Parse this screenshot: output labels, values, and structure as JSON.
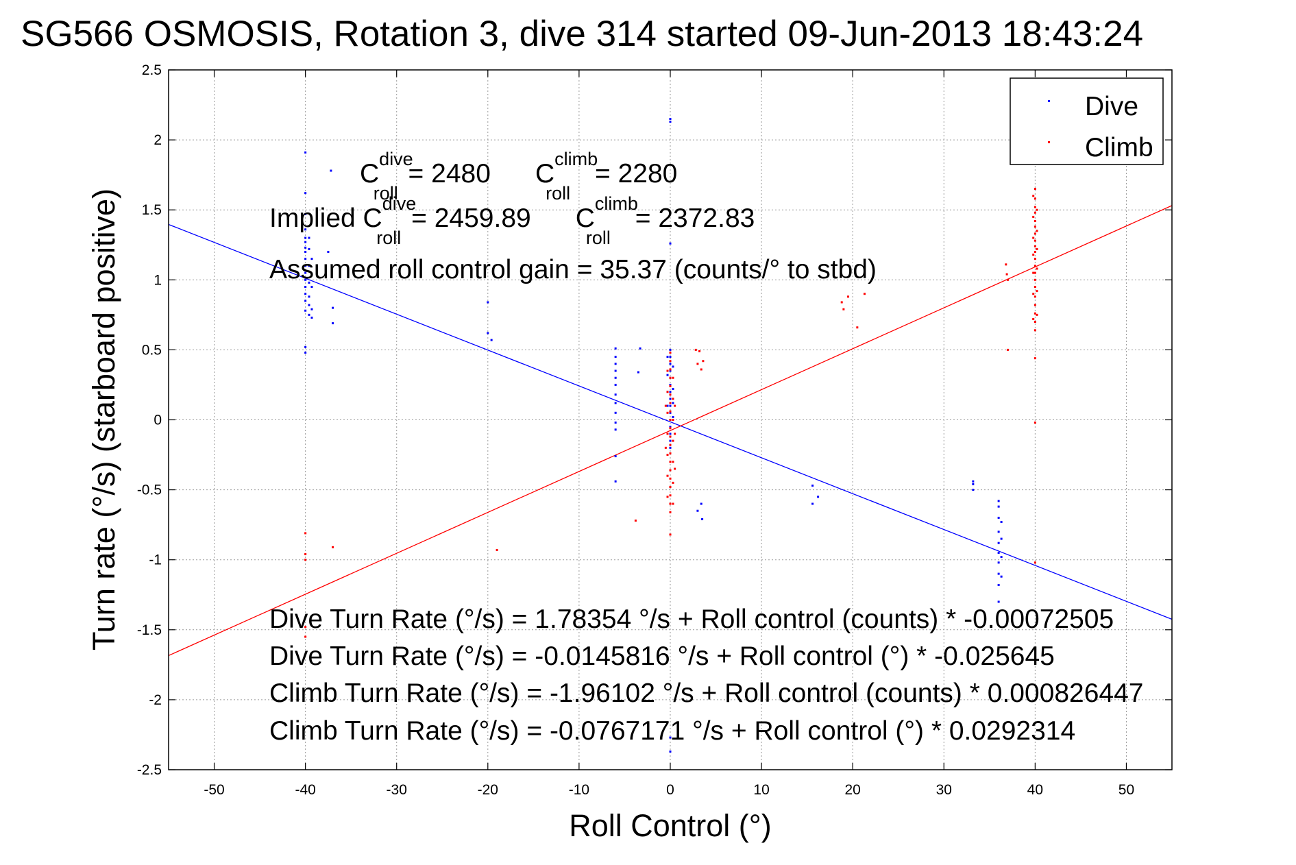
{
  "chart_data": {
    "type": "scatter",
    "title": "SG566 OSMOSIS, Rotation 3, dive 314 started 09-Jun-2013 18:43:24",
    "xlabel": "Roll Control (°)",
    "ylabel": "Turn rate (°/s)  (starboard positive)",
    "xlim": [
      -55,
      55
    ],
    "ylim": [
      -2.5,
      2.5
    ],
    "grid": true,
    "legend_position": "top-right",
    "x_ticks": [
      "-50",
      "-40",
      "-30",
      "-20",
      "-10",
      "0",
      "10",
      "20",
      "30",
      "40",
      "50"
    ],
    "x_tick_values": [
      -50,
      -40,
      -30,
      -20,
      -10,
      0,
      10,
      20,
      30,
      40,
      50
    ],
    "y_ticks": [
      "2.5",
      "2",
      "1.5",
      "1",
      "0.5",
      "0",
      "-0.5",
      "-1",
      "-1.5",
      "-2",
      "-2.5"
    ],
    "y_tick_values": [
      2.5,
      2,
      1.5,
      1,
      0.5,
      0,
      -0.5,
      -1,
      -1.5,
      -2,
      -2.5
    ],
    "series": [
      {
        "name": "Dive",
        "color": "#0000ff",
        "points": [
          [
            -40,
            1.91
          ],
          [
            -40,
            1.62
          ],
          [
            -40,
            1.47
          ],
          [
            -40,
            1.36
          ],
          [
            -40,
            1.3
          ],
          [
            -40,
            1.27
          ],
          [
            -40,
            1.23
          ],
          [
            -40,
            1.2
          ],
          [
            -40,
            1.15
          ],
          [
            -40,
            1.1
          ],
          [
            -40,
            1.05
          ],
          [
            -40,
            1.0
          ],
          [
            -40,
            0.95
          ],
          [
            -40,
            0.9
          ],
          [
            -40,
            0.85
          ],
          [
            -40,
            0.78
          ],
          [
            -40,
            0.52
          ],
          [
            -40,
            0.48
          ],
          [
            -39.6,
            1.3
          ],
          [
            -39.6,
            1.22
          ],
          [
            -39.6,
            1.1
          ],
          [
            -39.6,
            0.98
          ],
          [
            -39.6,
            0.88
          ],
          [
            -39.6,
            0.82
          ],
          [
            -39.6,
            0.75
          ],
          [
            -39.3,
            1.15
          ],
          [
            -39.3,
            0.95
          ],
          [
            -39.3,
            0.79
          ],
          [
            -39.3,
            0.73
          ],
          [
            -37.5,
            1.2
          ],
          [
            -37.2,
            1.78
          ],
          [
            -37,
            0.8
          ],
          [
            -37,
            0.69
          ],
          [
            -20,
            0.84
          ],
          [
            -20,
            0.62
          ],
          [
            -19.6,
            0.57
          ],
          [
            -6,
            0.51
          ],
          [
            -6,
            0.45
          ],
          [
            -6,
            0.4
          ],
          [
            -6,
            0.35
          ],
          [
            -6,
            0.3
          ],
          [
            -6,
            0.25
          ],
          [
            -6,
            0.18
          ],
          [
            -6,
            0.12
          ],
          [
            -6,
            0.05
          ],
          [
            -6,
            -0.02
          ],
          [
            -6,
            -0.07
          ],
          [
            -6,
            -0.26
          ],
          [
            -6,
            -0.44
          ],
          [
            -3.3,
            0.51
          ],
          [
            -3.5,
            0.34
          ],
          [
            0,
            2.13
          ],
          [
            0,
            2.15
          ],
          [
            0,
            1.26
          ],
          [
            0,
            0.5
          ],
          [
            0,
            0.45
          ],
          [
            0,
            0.4
          ],
          [
            0,
            0.35
          ],
          [
            0,
            0.3
          ],
          [
            0,
            0.25
          ],
          [
            0,
            0.2
          ],
          [
            0,
            0.15
          ],
          [
            0,
            0.1
          ],
          [
            0,
            0.05
          ],
          [
            0,
            0.0
          ],
          [
            0,
            -0.05
          ],
          [
            0,
            -0.1
          ],
          [
            0,
            -0.15
          ],
          [
            0,
            -0.2
          ],
          [
            -0.3,
            0.45
          ],
          [
            -0.3,
            0.32
          ],
          [
            -0.3,
            0.2
          ],
          [
            -0.3,
            0.1
          ],
          [
            0.3,
            0.38
          ],
          [
            0.3,
            0.22
          ],
          [
            0.3,
            0.12
          ],
          [
            0.3,
            0.02
          ],
          [
            0,
            -2.27
          ],
          [
            0,
            -2.37
          ],
          [
            3,
            -0.65
          ],
          [
            3.4,
            -0.6
          ],
          [
            3.5,
            -0.71
          ],
          [
            15.6,
            -0.47
          ],
          [
            15.6,
            -0.6
          ],
          [
            16.2,
            -0.55
          ],
          [
            33.2,
            -0.44
          ],
          [
            33.2,
            -0.46
          ],
          [
            33.2,
            -0.5
          ],
          [
            36,
            -0.58
          ],
          [
            36,
            -0.62
          ],
          [
            36,
            -0.7
          ],
          [
            36,
            -0.8
          ],
          [
            36,
            -0.88
          ],
          [
            36,
            -0.95
          ],
          [
            36,
            -1.02
          ],
          [
            36,
            -1.1
          ],
          [
            36,
            -1.18
          ],
          [
            36,
            -1.3
          ],
          [
            36.3,
            -0.73
          ],
          [
            36.3,
            -0.85
          ],
          [
            36.3,
            -0.98
          ],
          [
            36.3,
            -1.12
          ]
        ]
      },
      {
        "name": "Climb",
        "color": "#ff0000",
        "points": [
          [
            -40,
            -0.81
          ],
          [
            -40,
            -0.96
          ],
          [
            -40,
            -1.0
          ],
          [
            -40,
            -1.48
          ],
          [
            -40,
            -1.55
          ],
          [
            -37,
            -0.91
          ],
          [
            -19,
            -0.93
          ],
          [
            -3.8,
            -0.72
          ],
          [
            0,
            0.48
          ],
          [
            0,
            0.42
          ],
          [
            0,
            0.36
          ],
          [
            0,
            0.3
          ],
          [
            0,
            0.24
          ],
          [
            0,
            0.18
          ],
          [
            0,
            0.12
          ],
          [
            0,
            0.06
          ],
          [
            0,
            0.0
          ],
          [
            0,
            -0.06
          ],
          [
            0,
            -0.12
          ],
          [
            0,
            -0.18
          ],
          [
            0,
            -0.24
          ],
          [
            0,
            -0.3
          ],
          [
            0,
            -0.36
          ],
          [
            0,
            -0.42
          ],
          [
            0,
            -0.48
          ],
          [
            0,
            -0.54
          ],
          [
            0,
            -0.6
          ],
          [
            0,
            -0.66
          ],
          [
            0,
            -0.82
          ],
          [
            -0.3,
            0.35
          ],
          [
            -0.3,
            0.2
          ],
          [
            -0.3,
            0.05
          ],
          [
            -0.3,
            -0.1
          ],
          [
            -0.3,
            -0.25
          ],
          [
            -0.3,
            -0.4
          ],
          [
            -0.3,
            -0.55
          ],
          [
            0.3,
            0.3
          ],
          [
            0.3,
            0.15
          ],
          [
            0.3,
            0.0
          ],
          [
            0.3,
            -0.15
          ],
          [
            0.3,
            -0.3
          ],
          [
            0.3,
            -0.45
          ],
          [
            0.3,
            -0.6
          ],
          [
            -0.5,
            0.1
          ],
          [
            -0.5,
            -0.2
          ],
          [
            0.5,
            0.1
          ],
          [
            0.5,
            -0.1
          ],
          [
            0.5,
            -0.35
          ],
          [
            2.8,
            0.5
          ],
          [
            3,
            0.4
          ],
          [
            3.2,
            0.49
          ],
          [
            3.4,
            0.36
          ],
          [
            3.6,
            0.42
          ],
          [
            18.8,
            0.84
          ],
          [
            19,
            0.79
          ],
          [
            19.5,
            0.88
          ],
          [
            20.5,
            0.66
          ],
          [
            21.3,
            0.9
          ],
          [
            36.8,
            1.11
          ],
          [
            36.9,
            1.04
          ],
          [
            37,
            1.0
          ],
          [
            37,
            0.5
          ],
          [
            39.8,
            1.6
          ],
          [
            39.8,
            1.45
          ],
          [
            39.8,
            1.3
          ],
          [
            39.8,
            1.18
          ],
          [
            39.8,
            1.05
          ],
          [
            39.8,
            0.9
          ],
          [
            39.8,
            0.72
          ],
          [
            40,
            1.65
          ],
          [
            40,
            1.58
          ],
          [
            40,
            1.52
          ],
          [
            40,
            1.48
          ],
          [
            40,
            1.42
          ],
          [
            40,
            1.38
          ],
          [
            40,
            1.33
          ],
          [
            40,
            1.28
          ],
          [
            40,
            1.24
          ],
          [
            40,
            1.2
          ],
          [
            40,
            1.15
          ],
          [
            40,
            1.1
          ],
          [
            40,
            1.05
          ],
          [
            40,
            1.0
          ],
          [
            40,
            0.95
          ],
          [
            40,
            0.88
          ],
          [
            40,
            0.82
          ],
          [
            40,
            0.76
          ],
          [
            40,
            0.7
          ],
          [
            40,
            0.64
          ],
          [
            40,
            0.44
          ],
          [
            40,
            -0.02
          ],
          [
            40,
            -1.02
          ],
          [
            40.2,
            1.5
          ],
          [
            40.2,
            1.35
          ],
          [
            40.2,
            1.22
          ],
          [
            40.2,
            1.08
          ],
          [
            40.2,
            0.92
          ],
          [
            40.2,
            0.75
          ]
        ]
      }
    ],
    "fit_lines": [
      {
        "name": "Dive",
        "color": "#0000ff",
        "intercept": -0.0145816,
        "slope": -0.025645
      },
      {
        "name": "Climb",
        "color": "#ff0000",
        "intercept": -0.0767171,
        "slope": 0.0292314
      }
    ]
  },
  "annotations": {
    "line1": {
      "c": "C",
      "sup1": "dive",
      "sub1": "roll",
      "val1": " = 2480",
      "c2": "C",
      "sup2": "climb",
      "sub2": "roll",
      "val2": " = 2280"
    },
    "line2": {
      "prefix": "Implied C",
      "sup1": "dive",
      "sub1": "roll",
      "val1": " = 2459.89",
      "c2": "C",
      "sup2": "climb",
      "sub2": "roll",
      "val2": " = 2372.83"
    },
    "gain": "Assumed roll control gain = 35.37 (counts/° to stbd)",
    "eq1": "Dive Turn Rate (°/s) = 1.78354 °/s + Roll control (counts) * -0.00072505",
    "eq2": "Dive Turn Rate (°/s) = -0.0145816 °/s + Roll control (°) * -0.025645",
    "eq3": "Climb Turn Rate (°/s) = -1.96102 °/s + Roll control (counts) * 0.000826447",
    "eq4": "Climb Turn Rate (°/s) = -0.0767171 °/s + Roll control (°) * 0.0292314"
  }
}
